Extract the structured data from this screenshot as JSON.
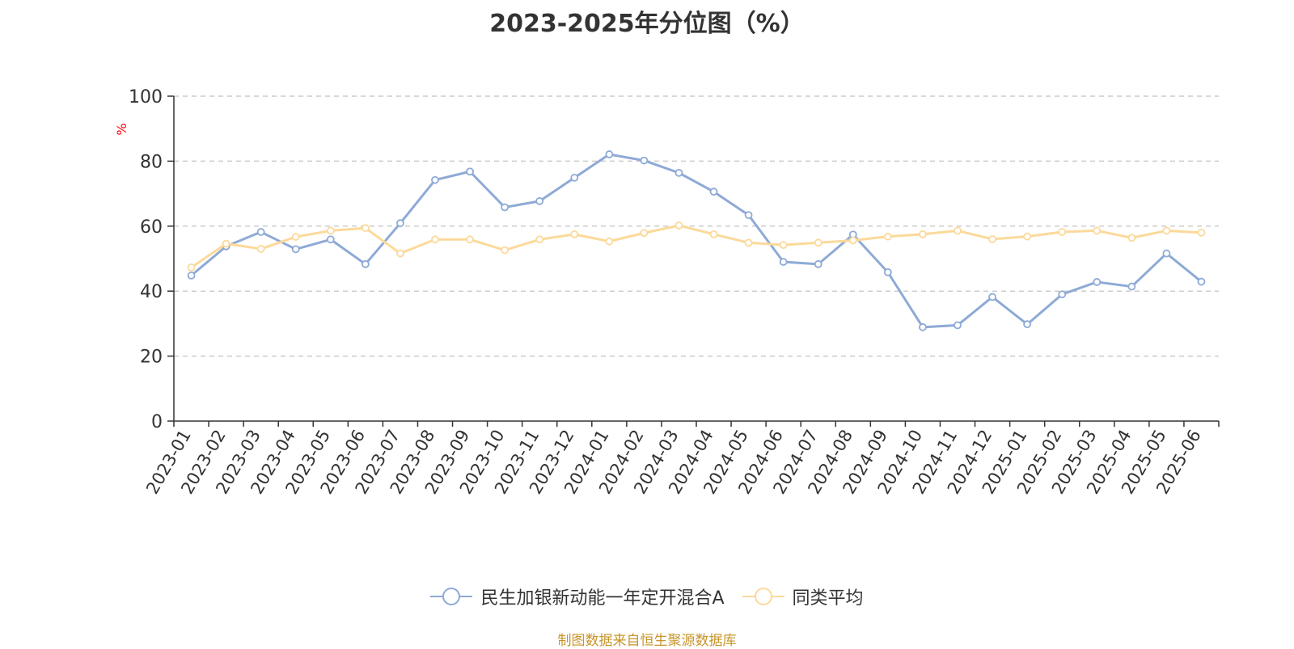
{
  "chart_data": {
    "type": "line",
    "title": "2023-2025年分位图（%）",
    "ylabel": "%",
    "xlabel": "",
    "ylim": [
      0,
      100
    ],
    "yticks": [
      0,
      20,
      40,
      60,
      80,
      100
    ],
    "grid": true,
    "legend_position": "bottom",
    "categories": [
      "2023-01",
      "2023-02",
      "2023-03",
      "2023-04",
      "2023-05",
      "2023-06",
      "2023-07",
      "2023-08",
      "2023-09",
      "2023-10",
      "2023-11",
      "2023-12",
      "2024-01",
      "2024-02",
      "2024-03",
      "2024-04",
      "2024-05",
      "2024-06",
      "2024-07",
      "2024-08",
      "2024-09",
      "2024-10",
      "2024-11",
      "2024-12",
      "2025-01",
      "2025-02",
      "2025-03",
      "2025-04",
      "2025-05",
      "2025-06"
    ],
    "series": [
      {
        "name": "民生加银新动能一年定开混合A",
        "color": "#8eaad6",
        "values": [
          44.8,
          53.8,
          58.2,
          52.9,
          55.9,
          48.3,
          60.9,
          74.2,
          76.8,
          65.8,
          67.7,
          74.9,
          82.1,
          80.2,
          76.4,
          70.6,
          63.4,
          49.0,
          48.3,
          57.4,
          45.8,
          28.9,
          29.5,
          38.2,
          29.8,
          39.0,
          42.8,
          41.4,
          51.6,
          42.9
        ]
      },
      {
        "name": "同类平均",
        "color": "#fcd99a",
        "values": [
          47.3,
          54.6,
          53.0,
          56.7,
          58.6,
          59.4,
          51.6,
          55.9,
          55.9,
          52.6,
          55.9,
          57.5,
          55.3,
          57.9,
          60.2,
          57.5,
          54.9,
          54.2,
          54.9,
          55.6,
          56.8,
          57.5,
          58.6,
          56.0,
          56.8,
          58.2,
          58.6,
          56.4,
          58.6,
          58.0
        ]
      }
    ]
  },
  "source_note": "制图数据来自恒生聚源数据库",
  "colors": {
    "axis": "#333333",
    "grid": "#cccccc",
    "ylabel": "#ff0000",
    "source_note": "#c8952a"
  }
}
